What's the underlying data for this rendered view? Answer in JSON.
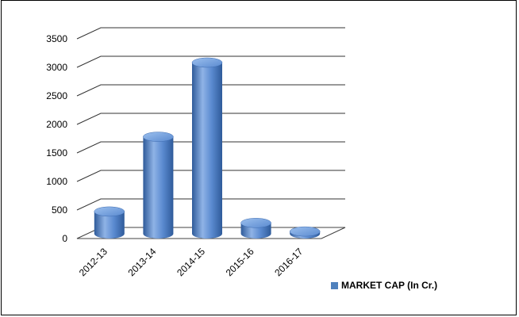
{
  "chart_data": {
    "type": "bar",
    "style": "3d-cylinder",
    "categories": [
      "2012-13",
      "2013-14",
      "2014-15",
      "2015-16",
      "2016-17"
    ],
    "series": [
      {
        "name": "MARKET CAP (In Cr.)",
        "values": [
          390,
          1700,
          3000,
          190,
          40
        ]
      }
    ],
    "ylim": [
      0,
      3500
    ],
    "yticks": [
      "0",
      "500",
      "1000",
      "1500",
      "2000",
      "2500",
      "3000",
      "3500"
    ],
    "grid": true,
    "legend_position": "bottom-right",
    "colors": {
      "bar": "#4f81bd",
      "bar_dark": "#2f5b9a",
      "bar_light": "#8fb3e6",
      "grid": "#333333"
    }
  }
}
